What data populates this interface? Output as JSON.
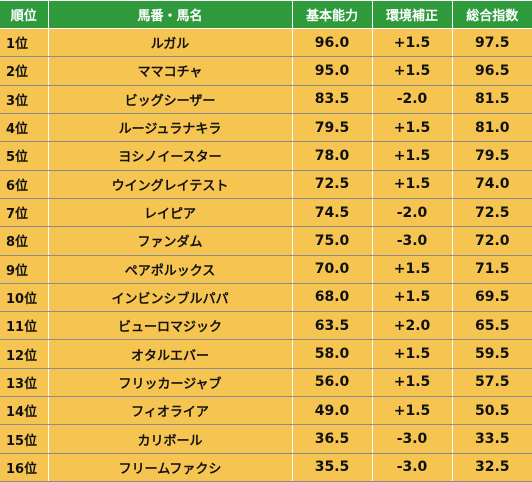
{
  "table": {
    "headers": {
      "rank": "順位",
      "horse": "馬番・馬名",
      "base_ability": "基本能力",
      "environment_adjustment": "環境補正",
      "total_index": "総合指数"
    },
    "rows": [
      {
        "rank": "1位",
        "horse": "ルガル",
        "base_ability": "96.0",
        "environment_adjustment": "+1.5",
        "total_index": "97.5"
      },
      {
        "rank": "2位",
        "horse": "ママコチャ",
        "base_ability": "95.0",
        "environment_adjustment": "+1.5",
        "total_index": "96.5"
      },
      {
        "rank": "3位",
        "horse": "ビッグシーザー",
        "base_ability": "83.5",
        "environment_adjustment": "-2.0",
        "total_index": "81.5"
      },
      {
        "rank": "4位",
        "horse": "ルージュラナキラ",
        "base_ability": "79.5",
        "environment_adjustment": "+1.5",
        "total_index": "81.0"
      },
      {
        "rank": "5位",
        "horse": "ヨシノイースター",
        "base_ability": "78.0",
        "environment_adjustment": "+1.5",
        "total_index": "79.5"
      },
      {
        "rank": "6位",
        "horse": "ウイングレイテスト",
        "base_ability": "72.5",
        "environment_adjustment": "+1.5",
        "total_index": "74.0"
      },
      {
        "rank": "7位",
        "horse": "レイピア",
        "base_ability": "74.5",
        "environment_adjustment": "-2.0",
        "total_index": "72.5"
      },
      {
        "rank": "8位",
        "horse": "ファンダム",
        "base_ability": "75.0",
        "environment_adjustment": "-3.0",
        "total_index": "72.0"
      },
      {
        "rank": "9位",
        "horse": "ペアポルックス",
        "base_ability": "70.0",
        "environment_adjustment": "+1.5",
        "total_index": "71.5"
      },
      {
        "rank": "10位",
        "horse": "インビンシブルパパ",
        "base_ability": "68.0",
        "environment_adjustment": "+1.5",
        "total_index": "69.5"
      },
      {
        "rank": "11位",
        "horse": "ビューロマジック",
        "base_ability": "63.5",
        "environment_adjustment": "+2.0",
        "total_index": "65.5"
      },
      {
        "rank": "12位",
        "horse": "オタルエバー",
        "base_ability": "58.0",
        "environment_adjustment": "+1.5",
        "total_index": "59.5"
      },
      {
        "rank": "13位",
        "horse": "フリッカージャブ",
        "base_ability": "56.0",
        "environment_adjustment": "+1.5",
        "total_index": "57.5"
      },
      {
        "rank": "14位",
        "horse": "フィオライア",
        "base_ability": "49.0",
        "environment_adjustment": "+1.5",
        "total_index": "50.5"
      },
      {
        "rank": "15位",
        "horse": "カリボール",
        "base_ability": "36.5",
        "environment_adjustment": "-3.0",
        "total_index": "33.5"
      },
      {
        "rank": "16位",
        "horse": "フリームファクシ",
        "base_ability": "35.5",
        "environment_adjustment": "-3.0",
        "total_index": "32.5"
      }
    ]
  },
  "colors": {
    "header_background": "#2f9a3c",
    "header_text": "#ffffff",
    "row_background": "#f6c551",
    "row_divider": "#8b8b8b",
    "text": "#111111"
  }
}
